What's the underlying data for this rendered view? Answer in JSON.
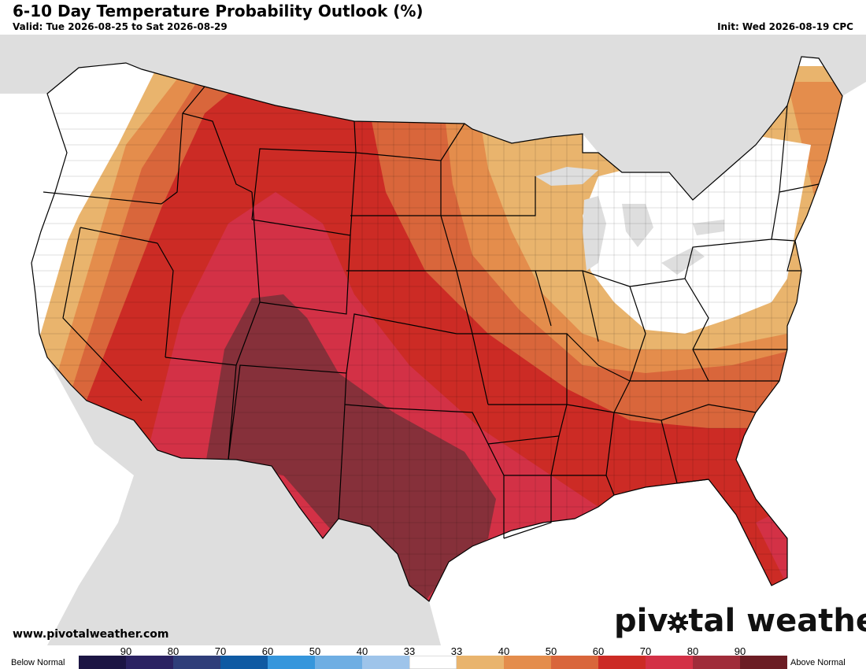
{
  "header": {
    "title": "6-10 Day Temperature Probability Outlook (%)",
    "valid": "Valid: Tue 2026-08-25 to Sat 2026-08-29",
    "init": "Init: Wed 2026-08-19 CPC"
  },
  "footer": {
    "website": "www.pivotalweather.com",
    "brand_left": "piv",
    "brand_right": "tal weather"
  },
  "legend": {
    "below_label": "Below Normal",
    "above_label": "Above Normal",
    "colors": [
      "#1c1544",
      "#2b2262",
      "#2f3e7a",
      "#0f5aa3",
      "#3596dc",
      "#6eaee3",
      "#9ec4ea",
      "#ffffff",
      "#e9b46d",
      "#e48d4c",
      "#d9663b",
      "#cc2b25",
      "#d33146",
      "#a02c3a",
      "#6c1d24"
    ],
    "ticks": [
      "90",
      "80",
      "70",
      "60",
      "50",
      "40",
      "33",
      "33",
      "40",
      "50",
      "60",
      "70",
      "80",
      "90"
    ]
  },
  "map": {
    "land_color": "#dedede",
    "ocean_color": "#ffffff",
    "regions": [
      {
        "name": "northeast-near-normal",
        "category": "33",
        "color": "#ffffff"
      },
      {
        "name": "west-coast-near-normal",
        "category": "33",
        "color": "#ffffff"
      },
      {
        "name": "above-normal-33-40",
        "category": "40",
        "color": "#e9b46d"
      },
      {
        "name": "above-normal-40-50",
        "category": "50",
        "color": "#e48d4c"
      },
      {
        "name": "above-normal-50-60",
        "category": "60",
        "color": "#d9663b"
      },
      {
        "name": "above-normal-60-70",
        "category": "70",
        "color": "#cc2b25"
      },
      {
        "name": "above-normal-70-80",
        "category": "80",
        "color": "#d33146"
      },
      {
        "name": "above-normal-80-90",
        "category": "90",
        "color": "#86303a"
      }
    ]
  }
}
